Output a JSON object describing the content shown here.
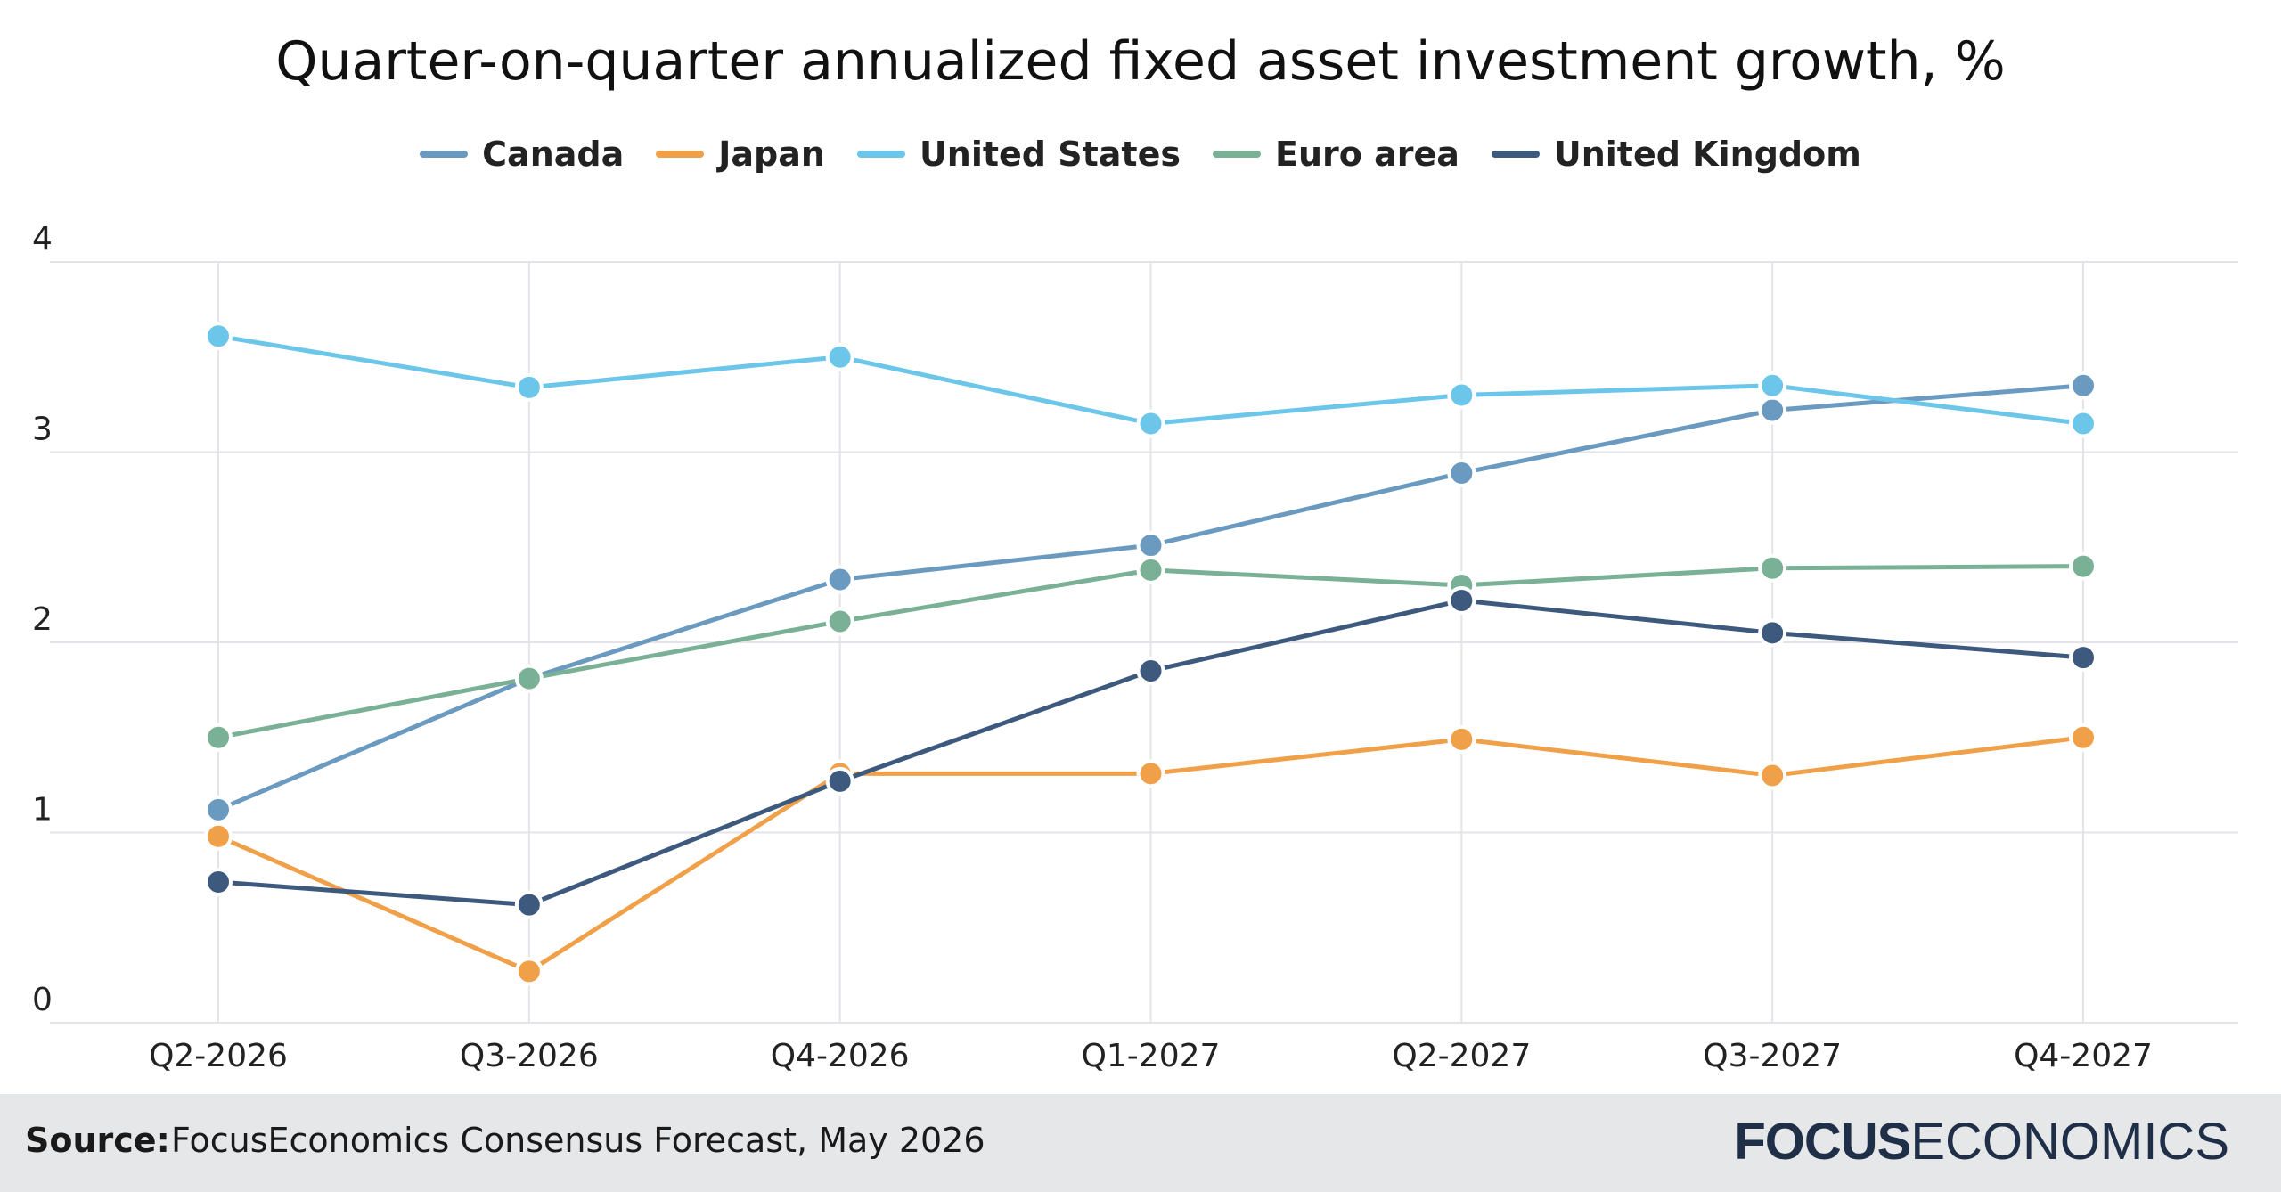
{
  "chart_data": {
    "type": "line",
    "title": "Quarter-on-quarter annualized fixed asset investment growth, %",
    "xlabel": "",
    "ylabel": "",
    "ylim": [
      0,
      4
    ],
    "yticks": [
      "0",
      "1",
      "2",
      "3",
      "4"
    ],
    "grid": true,
    "legend_position": "top",
    "categories": [
      "Q2-2026",
      "Q3-2026",
      "Q4-2026",
      "Q1-2027",
      "Q2-2027",
      "Q3-2027",
      "Q4-2027"
    ],
    "series": [
      {
        "name": "Canada",
        "color": "#6a9ac0",
        "values": [
          1.12,
          1.81,
          2.33,
          2.51,
          2.89,
          3.22,
          3.35
        ]
      },
      {
        "name": "Japan",
        "color": "#f0a048",
        "values": [
          0.98,
          0.27,
          1.31,
          1.31,
          1.49,
          1.3,
          1.5
        ]
      },
      {
        "name": "United States",
        "color": "#6cc6ea",
        "values": [
          3.61,
          3.34,
          3.5,
          3.15,
          3.3,
          3.35,
          3.15
        ]
      },
      {
        "name": "Euro area",
        "color": "#7ab096",
        "values": [
          1.5,
          1.81,
          2.11,
          2.38,
          2.3,
          2.39,
          2.4
        ]
      },
      {
        "name": "United Kingdom",
        "color": "#3d5a7e",
        "values": [
          0.74,
          0.62,
          1.27,
          1.85,
          2.22,
          2.05,
          1.92
        ]
      }
    ]
  },
  "footer": {
    "source_label": "Source:",
    "source_text": "FocusEconomics Consensus Forecast, May 2026",
    "brand_bold": "FOCUS",
    "brand_light": "ECONOMICS"
  }
}
